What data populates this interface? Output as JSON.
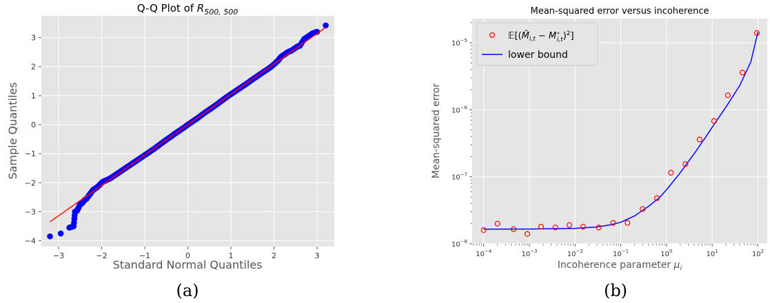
{
  "figure": {
    "captions": [
      "(a)",
      "(b)"
    ]
  },
  "chart_data": [
    {
      "type": "scatter",
      "title_prefix": "Q-Q Plot of ",
      "title_math": "R",
      "title_sub": "500, 500",
      "xlabel": "Standard Normal Quantiles",
      "ylabel": "Sample Quantiles",
      "xlim": [
        -3.4,
        3.4
      ],
      "ylim": [
        -4.2,
        3.75
      ],
      "xticks": [
        -3,
        -2,
        -1,
        0,
        1,
        2,
        3
      ],
      "xtick_labels": [
        "−3",
        "−2",
        "−1",
        "0",
        "1",
        "2",
        "3"
      ],
      "yticks": [
        -4,
        -3,
        -2,
        -1,
        0,
        1,
        2,
        3
      ],
      "ytick_labels": [
        "−4",
        "−3",
        "−2",
        "−1",
        "0",
        "1",
        "2",
        "3"
      ],
      "grid": true,
      "background": "#e5e5e5",
      "marker_color": "#0000ff",
      "line_color": "#ff0000",
      "reference_line": {
        "x": [
          -3.2,
          3.2
        ],
        "y": [
          -3.35,
          3.35
        ]
      },
      "points": {
        "x": [
          -3.2,
          -2.95,
          -2.75,
          -2.65,
          -2.62,
          -2.58,
          -2.55,
          -2.5,
          -2.45,
          -2.4,
          -2.35,
          -2.3,
          -2.25,
          -2.2,
          -2.15,
          -2.1,
          -2.05,
          -2.0,
          -1.95,
          -1.9,
          -1.8,
          -1.7,
          -1.6,
          -1.5,
          -1.4,
          -1.3,
          -1.2,
          -1.1,
          -1.0,
          -0.9,
          -0.8,
          -0.7,
          -0.6,
          -0.5,
          -0.4,
          -0.3,
          -0.2,
          -0.1,
          0.0,
          0.1,
          0.2,
          0.3,
          0.4,
          0.5,
          0.6,
          0.7,
          0.8,
          0.9,
          1.0,
          1.1,
          1.2,
          1.3,
          1.4,
          1.5,
          1.6,
          1.7,
          1.8,
          1.9,
          2.0,
          2.05,
          2.1,
          2.15,
          2.2,
          2.25,
          2.3,
          2.35,
          2.4,
          2.45,
          2.5,
          2.55,
          2.6,
          2.7,
          2.8,
          2.9,
          3.0,
          3.2
        ],
        "y": [
          -3.85,
          -3.75,
          -3.55,
          -3.5,
          -3.0,
          -2.98,
          -2.9,
          -2.75,
          -2.7,
          -2.6,
          -2.55,
          -2.45,
          -2.35,
          -2.25,
          -2.2,
          -2.15,
          -2.08,
          -2.0,
          -1.95,
          -1.92,
          -1.85,
          -1.75,
          -1.65,
          -1.55,
          -1.45,
          -1.35,
          -1.25,
          -1.15,
          -1.05,
          -0.95,
          -0.85,
          -0.74,
          -0.63,
          -0.52,
          -0.42,
          -0.31,
          -0.21,
          -0.11,
          0.0,
          0.1,
          0.2,
          0.31,
          0.42,
          0.52,
          0.62,
          0.73,
          0.84,
          0.95,
          1.05,
          1.15,
          1.25,
          1.35,
          1.45,
          1.56,
          1.66,
          1.76,
          1.86,
          1.96,
          2.08,
          2.15,
          2.22,
          2.32,
          2.38,
          2.42,
          2.48,
          2.52,
          2.55,
          2.6,
          2.65,
          2.7,
          2.72,
          2.95,
          3.05,
          3.15,
          3.2,
          3.42
        ]
      }
    },
    {
      "type": "scatter",
      "title": "Mean-squared error versus incoherence",
      "xlabel_text": "Incoherence parameter ",
      "xlabel_math": "μ",
      "xlabel_sub": "i",
      "ylabel": "Mean-squared error",
      "x_scale": "log",
      "y_scale": "log",
      "xlim": [
        5.6e-05,
        160.0
      ],
      "ylim": [
        1e-08,
        2.3e-05
      ],
      "xticks": [
        0.0001,
        0.001,
        0.01,
        0.1,
        1,
        10,
        100
      ],
      "xtick_labels": [
        [
          "10",
          "−4"
        ],
        [
          "10",
          "−3"
        ],
        [
          "10",
          "−2"
        ],
        [
          "10",
          "−1"
        ],
        [
          "10",
          "0"
        ],
        [
          "10",
          "1"
        ],
        [
          "10",
          "2"
        ]
      ],
      "yticks": [
        1e-08,
        1e-07,
        1e-06,
        1e-05
      ],
      "ytick_labels": [
        [
          "10",
          "−8"
        ],
        [
          "10",
          "−7"
        ],
        [
          "10",
          "−6"
        ],
        [
          "10",
          "−5"
        ]
      ],
      "grid": true,
      "background": "#e5e5e5",
      "legend_position": "top-left",
      "series": [
        {
          "name": "𝔼[(M̂ᵢ,ₜ − M*ᵢ,ₜ)²]",
          "kind": "markers",
          "color": "#ff0000",
          "x": [
            0.0001,
            0.0002,
            0.00045,
            0.0009,
            0.0018,
            0.0037,
            0.0075,
            0.015,
            0.033,
            0.068,
            0.14,
            0.3,
            0.62,
            1.25,
            2.6,
            5.3,
            11,
            22,
            46,
            95
          ],
          "y": [
            1.6e-08,
            2e-08,
            1.65e-08,
            1.4e-08,
            1.8e-08,
            1.75e-08,
            1.9e-08,
            1.8e-08,
            1.75e-08,
            2.05e-08,
            2.05e-08,
            3.3e-08,
            4.8e-08,
            1.15e-07,
            1.55e-07,
            3.6e-07,
            6.8e-07,
            1.65e-06,
            3.6e-06,
            1.4e-05
          ]
        },
        {
          "name": "lower bound",
          "kind": "line",
          "color": "#0000ff",
          "x": [
            0.0001,
            0.001,
            0.01,
            0.03,
            0.06,
            0.1,
            0.2,
            0.4,
            0.7,
            1,
            2,
            4,
            7,
            10,
            20,
            40,
            70,
            100
          ],
          "y": [
            1.65e-08,
            1.66e-08,
            1.7e-08,
            1.78e-08,
            1.92e-08,
            2.1e-08,
            2.6e-08,
            3.6e-08,
            4.9e-08,
            6.4e-08,
            1.15e-07,
            2.2e-07,
            3.8e-07,
            5.5e-07,
            1.1e-06,
            2.3e-06,
            5.2e-06,
            1.45e-05
          ]
        }
      ]
    }
  ]
}
